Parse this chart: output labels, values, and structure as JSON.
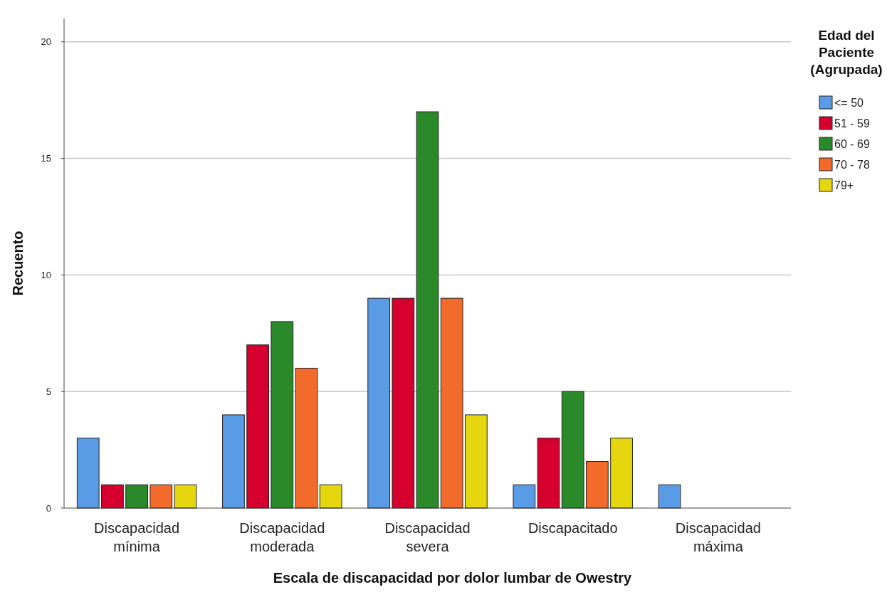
{
  "chart_data": {
    "type": "bar",
    "xlabel": "Escala de discapacidad por dolor lumbar de Owestry",
    "ylabel": "Recuento",
    "legend_title": "Edad del Paciente (Agrupada)",
    "categories": [
      "Discapacidad mínima",
      "Discapacidad moderada",
      "Discapacidad severa",
      "Discapacitado",
      "Discapacidad máxima"
    ],
    "series": [
      {
        "name": "<= 50",
        "color": "#5a9be6",
        "values": [
          3,
          4,
          9,
          1,
          1
        ]
      },
      {
        "name": "51 - 59",
        "color": "#d6002e",
        "values": [
          1,
          7,
          9,
          3,
          0
        ]
      },
      {
        "name": "60 - 69",
        "color": "#2a8a2a",
        "values": [
          1,
          8,
          17,
          5,
          0
        ]
      },
      {
        "name": "70 - 78",
        "color": "#f36b2a",
        "values": [
          1,
          6,
          9,
          2,
          0
        ]
      },
      {
        "name": "79+",
        "color": "#e6d60e",
        "values": [
          1,
          1,
          4,
          3,
          0
        ]
      }
    ],
    "ylim": [
      0,
      21
    ],
    "yticks": [
      0,
      5,
      10,
      15,
      20
    ],
    "grid": "y",
    "legend": "top right"
  }
}
